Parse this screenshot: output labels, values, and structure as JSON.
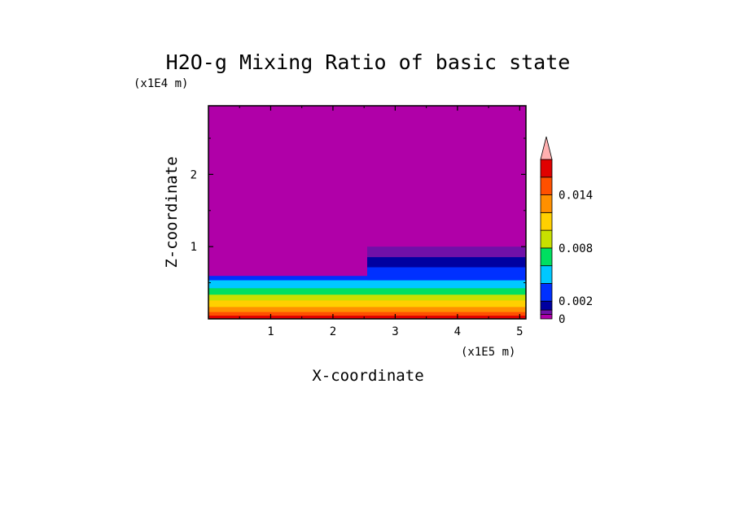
{
  "chart_data": {
    "type": "contour",
    "title": "H2O-g Mixing Ratio of basic state",
    "xlabel": "X-coordinate",
    "ylabel": "Z-coordinate",
    "x_unit": "(x1E5 m)",
    "y_unit": "(x1E4 m)",
    "xlim": [
      0,
      5.1
    ],
    "ylim": [
      0,
      2.95
    ],
    "x_ticks": [
      "1",
      "2",
      "3",
      "4",
      "5"
    ],
    "x_tick_values": [
      1,
      2,
      3,
      4,
      5
    ],
    "y_ticks": [
      "1",
      "2"
    ],
    "y_tick_values": [
      1,
      2
    ],
    "colorbar": {
      "tick_labels": [
        "0",
        "0.002",
        "0.008",
        "0.014"
      ],
      "tick_values": [
        0,
        0.002,
        0.008,
        0.014
      ],
      "levels": [
        0,
        0.0005,
        0.001,
        0.002,
        0.004,
        0.006,
        0.008,
        0.01,
        0.012,
        0.014,
        0.016,
        0.018
      ],
      "extend": "max",
      "colors": [
        "#b000a8",
        "#7010a8",
        "#0000a0",
        "#0030ff",
        "#00c8ff",
        "#00e060",
        "#c8e000",
        "#ffd000",
        "#ff9000",
        "#ff5000",
        "#e00000",
        "#ffb0b0"
      ]
    },
    "bands": [
      {
        "z": [
          0.0,
          0.05
        ],
        "value": 0.017
      },
      {
        "z": [
          0.05,
          0.1
        ],
        "value": 0.015
      },
      {
        "z": [
          0.1,
          0.17
        ],
        "value": 0.013
      },
      {
        "z": [
          0.17,
          0.26
        ],
        "value": 0.011
      },
      {
        "z": [
          0.26,
          0.34
        ],
        "value": 0.009
      },
      {
        "z": [
          0.34,
          0.43
        ],
        "value": 0.007
      },
      {
        "z": [
          0.43,
          0.54
        ],
        "value": 0.005
      },
      {
        "z": [
          0.54,
          0.6
        ],
        "value": 0.003
      },
      {
        "z": [
          0.6,
          2.95
        ],
        "value": 0.0002
      },
      {
        "x": [
          2.55,
          5.1
        ],
        "z": [
          0.54,
          0.72
        ],
        "value": 0.003
      },
      {
        "x": [
          2.55,
          5.1
        ],
        "z": [
          0.72,
          0.86
        ],
        "value": 0.0015
      },
      {
        "x": [
          2.55,
          5.1
        ],
        "z": [
          0.86,
          1.0
        ],
        "value": 0.0007
      }
    ]
  }
}
